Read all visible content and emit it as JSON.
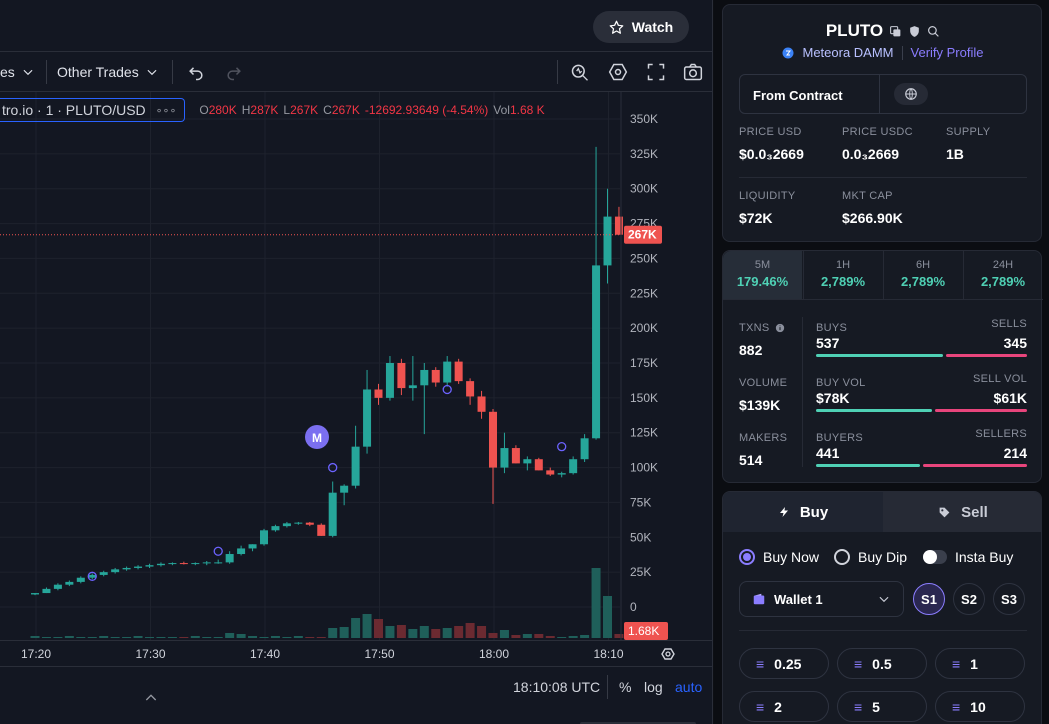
{
  "header": {
    "watch_label": "Watch"
  },
  "toolbar": {
    "indicators_label": "es",
    "other_trades_label": "Other Trades"
  },
  "legend": {
    "symbol": "tro.io · 1 · PLUTO/USD",
    "more": "∘∘∘",
    "o_label": "O",
    "o_val": "280K",
    "h_label": "H",
    "h_val": "287K",
    "l_label": "L",
    "l_val": "267K",
    "c_label": "C",
    "c_val": "267K",
    "change": "-12692.93649 (-4.54%)",
    "vol_label": "Vol",
    "vol_val": "1.68 K"
  },
  "price_axis": [
    "350K",
    "325K",
    "300K",
    "275K",
    "250K",
    "225K",
    "200K",
    "175K",
    "150K",
    "125K",
    "100K",
    "75K",
    "50K",
    "25K",
    "0"
  ],
  "last_price_tag": "267K",
  "volume_tag": "1.68K",
  "time_axis": [
    "17:20",
    "17:30",
    "17:40",
    "17:50",
    "18:00",
    "18:10"
  ],
  "marker_label": "M",
  "status": {
    "clock": "18:10:08 UTC",
    "percent": "%",
    "log": "log",
    "auto": "auto"
  },
  "token": {
    "name": "PLUTO",
    "dex": "Meteora DAMM",
    "verify": "Verify Profile",
    "from_contract": "From Contract",
    "price_usd_label": "PRICE USD",
    "price_usd": "$0.0₃2669",
    "price_usdc_label": "PRICE USDC",
    "price_usdc": "0.0₃2669",
    "supply_label": "SUPPLY",
    "supply": "1B",
    "liquidity_label": "LIQUIDITY",
    "liquidity": "$72K",
    "mktcap_label": "MKT CAP",
    "mktcap": "$266.90K"
  },
  "timeframes": [
    {
      "label": "5M",
      "pct": "179.46%"
    },
    {
      "label": "1H",
      "pct": "2,789%"
    },
    {
      "label": "6H",
      "pct": "2,789%"
    },
    {
      "label": "24H",
      "pct": "2,789%"
    }
  ],
  "stats": {
    "txns_label": "TXNS",
    "txns": "882",
    "buys_label": "BUYS",
    "buys": "537",
    "sells_label": "SELLS",
    "sells": "345",
    "volume_label": "VOLUME",
    "volume": "$139K",
    "buy_vol_label": "BUY VOL",
    "buy_vol": "$78K",
    "sell_vol_label": "SELL VOL",
    "sell_vol": "$61K",
    "makers_label": "MAKERS",
    "makers": "514",
    "buyers_label": "BUYERS",
    "buyers": "441",
    "sellers_label": "SELLERS",
    "sellers": "214"
  },
  "trade": {
    "buy_tab": "Buy",
    "sell_tab": "Sell",
    "buy_now": "Buy Now",
    "buy_dip": "Buy Dip",
    "insta_buy": "Insta Buy",
    "wallet": "Wallet 1",
    "presets": [
      "S1",
      "S2",
      "S3"
    ],
    "amounts": [
      "0.25",
      "0.5",
      "1",
      "2",
      "5",
      "10"
    ]
  },
  "colors": {
    "up": "#26a69a",
    "down": "#ef5350",
    "accent": "#7b6ff0",
    "teal": "#4fd1b5",
    "pink": "#e8457c"
  },
  "chart_data": {
    "type": "candlestick",
    "x_label": "time (UTC)",
    "y_label": "",
    "ylim": [
      0,
      350000
    ],
    "x_ticks": [
      "17:20",
      "17:30",
      "17:40",
      "17:50",
      "18:00",
      "18:10"
    ],
    "candles": [
      {
        "t": "17:20",
        "o": 9000,
        "h": 10000,
        "l": 8500,
        "c": 10000
      },
      {
        "t": "17:21",
        "o": 10000,
        "h": 14000,
        "l": 10000,
        "c": 13000
      },
      {
        "t": "17:22",
        "o": 13000,
        "h": 17000,
        "l": 12000,
        "c": 16000
      },
      {
        "t": "17:23",
        "o": 16000,
        "h": 19000,
        "l": 15000,
        "c": 18000
      },
      {
        "t": "17:24",
        "o": 18000,
        "h": 22000,
        "l": 17000,
        "c": 21000
      },
      {
        "t": "17:25",
        "o": 21000,
        "h": 24000,
        "l": 20000,
        "c": 23000
      },
      {
        "t": "17:26",
        "o": 23000,
        "h": 26000,
        "l": 22000,
        "c": 25000
      },
      {
        "t": "17:27",
        "o": 25000,
        "h": 28000,
        "l": 24000,
        "c": 27000
      },
      {
        "t": "17:28",
        "o": 27000,
        "h": 29000,
        "l": 26000,
        "c": 28000
      },
      {
        "t": "17:29",
        "o": 28000,
        "h": 30000,
        "l": 27000,
        "c": 29000
      },
      {
        "t": "17:30",
        "o": 29000,
        "h": 31000,
        "l": 28000,
        "c": 30000
      },
      {
        "t": "17:31",
        "o": 30000,
        "h": 32000,
        "l": 29000,
        "c": 31000
      },
      {
        "t": "17:32",
        "o": 31000,
        "h": 32000,
        "l": 30000,
        "c": 31500
      },
      {
        "t": "17:33",
        "o": 31500,
        "h": 32500,
        "l": 30500,
        "c": 31000
      },
      {
        "t": "17:34",
        "o": 31000,
        "h": 32000,
        "l": 30000,
        "c": 31500
      },
      {
        "t": "17:35",
        "o": 31500,
        "h": 33000,
        "l": 30000,
        "c": 32000
      },
      {
        "t": "17:36",
        "o": 32000,
        "h": 34000,
        "l": 31000,
        "c": 32000
      },
      {
        "t": "17:37",
        "o": 32000,
        "h": 40000,
        "l": 31000,
        "c": 38000
      },
      {
        "t": "17:38",
        "o": 38000,
        "h": 44000,
        "l": 37000,
        "c": 42000
      },
      {
        "t": "17:39",
        "o": 42000,
        "h": 45000,
        "l": 40000,
        "c": 45000
      },
      {
        "t": "17:40",
        "o": 45000,
        "h": 56000,
        "l": 44000,
        "c": 55000
      },
      {
        "t": "17:41",
        "o": 55000,
        "h": 59000,
        "l": 54000,
        "c": 58000
      },
      {
        "t": "17:42",
        "o": 58000,
        "h": 61000,
        "l": 57000,
        "c": 60000
      },
      {
        "t": "17:43",
        "o": 60000,
        "h": 61000,
        "l": 59000,
        "c": 60500
      },
      {
        "t": "17:44",
        "o": 60500,
        "h": 61000,
        "l": 58000,
        "c": 59000
      },
      {
        "t": "17:45",
        "o": 59000,
        "h": 60000,
        "l": 51000,
        "c": 51000
      },
      {
        "t": "17:46",
        "o": 51000,
        "h": 90000,
        "l": 50000,
        "c": 82000
      },
      {
        "t": "17:47",
        "o": 82000,
        "h": 88000,
        "l": 73000,
        "c": 87000
      },
      {
        "t": "17:48",
        "o": 87000,
        "h": 130000,
        "l": 85000,
        "c": 115000
      },
      {
        "t": "17:49",
        "o": 115000,
        "h": 170000,
        "l": 110000,
        "c": 156000
      },
      {
        "t": "17:50",
        "o": 156000,
        "h": 160000,
        "l": 145000,
        "c": 150000
      },
      {
        "t": "17:51",
        "o": 150000,
        "h": 180000,
        "l": 148000,
        "c": 175000
      },
      {
        "t": "17:52",
        "o": 175000,
        "h": 178000,
        "l": 152000,
        "c": 157000
      },
      {
        "t": "17:53",
        "o": 157000,
        "h": 180000,
        "l": 148000,
        "c": 159000
      },
      {
        "t": "17:54",
        "o": 159000,
        "h": 175000,
        "l": 124000,
        "c": 170000
      },
      {
        "t": "17:55",
        "o": 170000,
        "h": 172000,
        "l": 158000,
        "c": 161000
      },
      {
        "t": "17:56",
        "o": 161000,
        "h": 180000,
        "l": 158000,
        "c": 176000
      },
      {
        "t": "17:57",
        "o": 176000,
        "h": 178000,
        "l": 160000,
        "c": 162000
      },
      {
        "t": "17:58",
        "o": 162000,
        "h": 164000,
        "l": 145000,
        "c": 151000
      },
      {
        "t": "17:59",
        "o": 151000,
        "h": 155000,
        "l": 135000,
        "c": 140000
      },
      {
        "t": "18:00",
        "o": 140000,
        "h": 142000,
        "l": 74000,
        "c": 100000
      },
      {
        "t": "18:01",
        "o": 100000,
        "h": 125000,
        "l": 96000,
        "c": 114000
      },
      {
        "t": "18:02",
        "o": 114000,
        "h": 116000,
        "l": 103000,
        "c": 103000
      },
      {
        "t": "18:03",
        "o": 103000,
        "h": 108000,
        "l": 98000,
        "c": 106000
      },
      {
        "t": "18:04",
        "o": 106000,
        "h": 107000,
        "l": 98000,
        "c": 98000
      },
      {
        "t": "18:05",
        "o": 98000,
        "h": 100000,
        "l": 94000,
        "c": 95000
      },
      {
        "t": "18:06",
        "o": 95000,
        "h": 97000,
        "l": 93000,
        "c": 96000
      },
      {
        "t": "18:07",
        "o": 96000,
        "h": 108000,
        "l": 95000,
        "c": 106000
      },
      {
        "t": "18:08",
        "o": 106000,
        "h": 124000,
        "l": 104000,
        "c": 121000
      },
      {
        "t": "18:09",
        "o": 121000,
        "h": 330000,
        "l": 120000,
        "c": 245000
      },
      {
        "t": "18:10",
        "o": 245000,
        "h": 300000,
        "l": 232000,
        "c": 280000
      },
      {
        "t": "18:11",
        "o": 280000,
        "h": 287000,
        "l": 267000,
        "c": 267000
      }
    ],
    "volume_up": [
      2,
      1,
      1,
      2,
      1,
      1,
      2,
      1,
      1,
      2,
      1,
      1,
      1,
      1,
      2,
      1,
      1,
      5,
      4,
      2,
      1,
      2,
      1,
      2,
      1,
      1,
      10,
      11,
      20,
      24,
      19,
      12,
      13,
      9,
      12,
      9,
      10,
      12,
      15,
      12,
      5,
      8,
      3,
      4,
      4,
      2,
      1,
      2,
      3,
      70,
      42,
      4
    ],
    "volume_down": [],
    "last_price": 267000
  }
}
